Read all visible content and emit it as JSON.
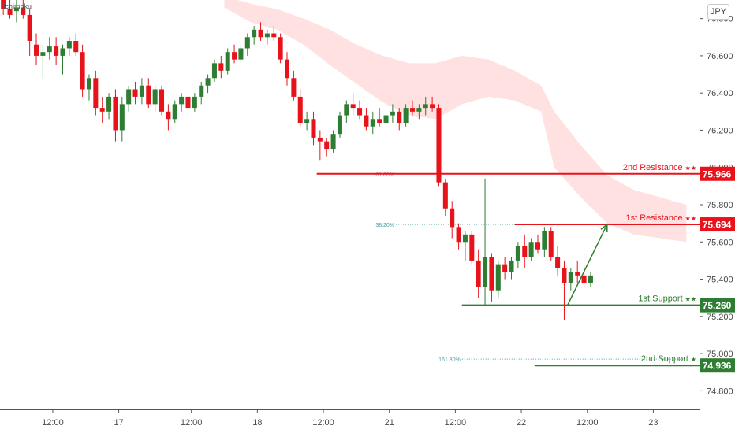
{
  "indicator_label": "Ichimoku",
  "currency": "JPY",
  "colors": {
    "bull": "#2e7d32",
    "bear": "#e8121b",
    "cloud": "#ffd7d7",
    "resistance": "#e8121b",
    "support": "#2e7d32",
    "fib_resistance": "#e07b7b",
    "fib_support": "#4a9e9e"
  },
  "chart_data": {
    "type": "candlestick",
    "symbol": "JPY",
    "y_ticks": [
      "76.800",
      "76.600",
      "76.400",
      "76.200",
      "76.000",
      "75.800",
      "75.600",
      "75.400",
      "75.200",
      "75.000",
      "74.800"
    ],
    "y_tick_values": [
      76.8,
      76.6,
      76.4,
      76.2,
      76.0,
      75.8,
      75.6,
      75.4,
      75.2,
      75.0,
      74.8
    ],
    "x_ticks": [
      "12:00",
      "17",
      "12:00",
      "18",
      "12:00",
      "21",
      "12:00",
      "22",
      "12:00",
      "23"
    ],
    "x_tick_bars": [
      8,
      18,
      29,
      39,
      49,
      59,
      69,
      79,
      89,
      99
    ],
    "ylim": [
      74.7,
      76.9
    ],
    "xlim": [
      0,
      106
    ],
    "candles": [
      [
        76.9,
        76.95,
        76.82,
        76.85
      ],
      [
        76.85,
        76.92,
        76.8,
        76.82
      ],
      [
        76.84,
        76.9,
        76.78,
        76.86
      ],
      [
        76.86,
        76.93,
        76.8,
        76.82
      ],
      [
        76.82,
        76.85,
        76.6,
        76.68
      ],
      [
        76.66,
        76.72,
        76.55,
        76.6
      ],
      [
        76.6,
        76.66,
        76.48,
        76.62
      ],
      [
        76.62,
        76.7,
        76.58,
        76.65
      ],
      [
        76.65,
        76.7,
        76.55,
        76.6
      ],
      [
        76.6,
        76.66,
        76.5,
        76.64
      ],
      [
        76.64,
        76.7,
        76.6,
        76.68
      ],
      [
        76.68,
        76.72,
        76.6,
        76.62
      ],
      [
        76.62,
        76.66,
        76.38,
        76.42
      ],
      [
        76.42,
        76.5,
        76.36,
        76.48
      ],
      [
        76.48,
        76.52,
        76.28,
        76.32
      ],
      [
        76.32,
        76.38,
        76.24,
        76.3
      ],
      [
        76.3,
        76.4,
        76.26,
        76.38
      ],
      [
        76.38,
        76.42,
        76.14,
        76.2
      ],
      [
        76.2,
        76.38,
        76.14,
        76.34
      ],
      [
        76.34,
        76.44,
        76.3,
        76.42
      ],
      [
        76.42,
        76.46,
        76.34,
        76.38
      ],
      [
        76.38,
        76.48,
        76.34,
        76.44
      ],
      [
        76.44,
        76.48,
        76.32,
        76.34
      ],
      [
        76.34,
        76.44,
        76.3,
        76.42
      ],
      [
        76.42,
        76.44,
        76.28,
        76.3
      ],
      [
        76.3,
        76.34,
        76.2,
        76.26
      ],
      [
        76.26,
        76.36,
        76.24,
        76.34
      ],
      [
        76.34,
        76.4,
        76.3,
        76.38
      ],
      [
        76.38,
        76.42,
        76.28,
        76.32
      ],
      [
        76.32,
        76.4,
        76.3,
        76.38
      ],
      [
        76.38,
        76.46,
        76.34,
        76.44
      ],
      [
        76.44,
        76.5,
        76.4,
        76.48
      ],
      [
        76.48,
        76.58,
        76.46,
        76.56
      ],
      [
        76.56,
        76.6,
        76.48,
        76.52
      ],
      [
        76.52,
        76.64,
        76.5,
        76.62
      ],
      [
        76.62,
        76.66,
        76.56,
        76.58
      ],
      [
        76.58,
        76.66,
        76.56,
        76.64
      ],
      [
        76.64,
        76.72,
        76.6,
        76.7
      ],
      [
        76.7,
        76.76,
        76.66,
        76.74
      ],
      [
        76.74,
        76.78,
        76.68,
        76.7
      ],
      [
        76.7,
        76.74,
        76.66,
        76.72
      ],
      [
        76.72,
        76.76,
        76.68,
        76.7
      ],
      [
        76.7,
        76.72,
        76.56,
        76.58
      ],
      [
        76.58,
        76.62,
        76.44,
        76.48
      ],
      [
        76.48,
        76.52,
        76.36,
        76.38
      ],
      [
        76.38,
        76.42,
        76.22,
        76.24
      ],
      [
        76.24,
        76.3,
        76.2,
        76.26
      ],
      [
        76.26,
        76.3,
        76.12,
        76.16
      ],
      [
        76.16,
        76.2,
        76.04,
        76.14
      ],
      [
        76.14,
        76.16,
        76.06,
        76.1
      ],
      [
        76.1,
        76.2,
        76.08,
        76.18
      ],
      [
        76.18,
        76.3,
        76.16,
        76.28
      ],
      [
        76.28,
        76.36,
        76.24,
        76.34
      ],
      [
        76.34,
        76.4,
        76.28,
        76.32
      ],
      [
        76.32,
        76.36,
        76.26,
        76.28
      ],
      [
        76.28,
        76.32,
        76.2,
        76.22
      ],
      [
        76.22,
        76.3,
        76.18,
        76.26
      ],
      [
        76.26,
        76.32,
        76.22,
        76.24
      ],
      [
        76.24,
        76.3,
        76.22,
        76.28
      ],
      [
        76.28,
        76.34,
        76.24,
        76.3
      ],
      [
        76.3,
        76.32,
        76.2,
        76.24
      ],
      [
        76.24,
        76.34,
        76.22,
        76.32
      ],
      [
        76.32,
        76.36,
        76.28,
        76.3
      ],
      [
        76.3,
        76.34,
        76.26,
        76.32
      ],
      [
        76.32,
        76.38,
        76.28,
        76.34
      ],
      [
        76.34,
        76.38,
        76.3,
        76.32
      ],
      [
        76.32,
        76.34,
        75.9,
        75.92
      ],
      [
        75.92,
        75.94,
        75.74,
        75.78
      ],
      [
        75.78,
        75.82,
        75.62,
        75.68
      ],
      [
        75.68,
        75.7,
        75.56,
        75.6
      ],
      [
        75.6,
        75.66,
        75.5,
        75.64
      ],
      [
        75.64,
        75.66,
        75.48,
        75.5
      ],
      [
        75.5,
        75.56,
        75.3,
        75.36
      ],
      [
        75.36,
        75.94,
        75.26,
        75.52
      ],
      [
        75.52,
        75.54,
        75.28,
        75.34
      ],
      [
        75.34,
        75.5,
        75.3,
        75.48
      ],
      [
        75.48,
        75.52,
        75.4,
        75.44
      ],
      [
        75.44,
        75.52,
        75.4,
        75.5
      ],
      [
        75.5,
        75.6,
        75.46,
        75.58
      ],
      [
        75.58,
        75.64,
        75.46,
        75.52
      ],
      [
        75.52,
        75.62,
        75.5,
        75.6
      ],
      [
        75.6,
        75.64,
        75.54,
        75.56
      ],
      [
        75.56,
        75.68,
        75.52,
        75.66
      ],
      [
        75.66,
        75.68,
        75.5,
        75.52
      ],
      [
        75.52,
        75.58,
        75.42,
        75.46
      ],
      [
        75.46,
        75.5,
        75.18,
        75.38
      ],
      [
        75.38,
        75.46,
        75.34,
        75.44
      ],
      [
        75.44,
        75.5,
        75.38,
        75.42
      ],
      [
        75.42,
        75.48,
        75.36,
        75.38
      ],
      [
        75.38,
        75.44,
        75.36,
        75.42
      ]
    ],
    "levels": [
      {
        "name": "2nd Resistance",
        "stars": "★★",
        "value": 75.966,
        "label": "75.966",
        "kind": "resistance",
        "start_bar": 48
      },
      {
        "name": "1st Resistance",
        "stars": "★★",
        "value": 75.694,
        "label": "75.694",
        "kind": "resistance",
        "start_bar": 78
      },
      {
        "name": "1st Support",
        "stars": "★★",
        "value": 75.26,
        "label": "75.260",
        "kind": "support",
        "start_bar": 70
      },
      {
        "name": "2nd Support",
        "stars": "★",
        "value": 74.936,
        "label": "74.936",
        "kind": "support",
        "start_bar": 81
      }
    ],
    "fib_levels": [
      {
        "label": "61.80%",
        "value": 75.966,
        "kind": "resistance",
        "from_bar": 60,
        "to_bar": 80
      },
      {
        "label": "38.20%",
        "value": 75.694,
        "kind": "support",
        "from_bar": 60,
        "to_bar": 80
      },
      {
        "label": "161.80%",
        "value": 74.97,
        "kind": "support",
        "from_bar": 70,
        "to_bar": 104
      }
    ],
    "projection_arrow": {
      "from_bar": 86,
      "from_value": 75.26,
      "to_bar": 92,
      "to_value": 75.694
    },
    "cloud": [
      [
        34,
        76.92,
        76.86
      ],
      [
        38,
        76.88,
        76.78
      ],
      [
        42,
        76.85,
        76.74
      ],
      [
        46,
        76.8,
        76.66
      ],
      [
        50,
        76.74,
        76.55
      ],
      [
        54,
        76.66,
        76.45
      ],
      [
        58,
        76.6,
        76.35
      ],
      [
        62,
        76.56,
        76.28
      ],
      [
        66,
        76.56,
        76.26
      ],
      [
        70,
        76.6,
        76.34
      ],
      [
        74,
        76.58,
        76.38
      ],
      [
        78,
        76.52,
        76.36
      ],
      [
        82,
        76.44,
        76.3
      ],
      [
        84,
        76.3,
        76.0
      ],
      [
        88,
        76.12,
        75.84
      ],
      [
        92,
        75.96,
        75.7
      ],
      [
        96,
        75.88,
        75.64
      ],
      [
        100,
        75.84,
        75.62
      ],
      [
        104,
        75.8,
        75.6
      ]
    ]
  }
}
